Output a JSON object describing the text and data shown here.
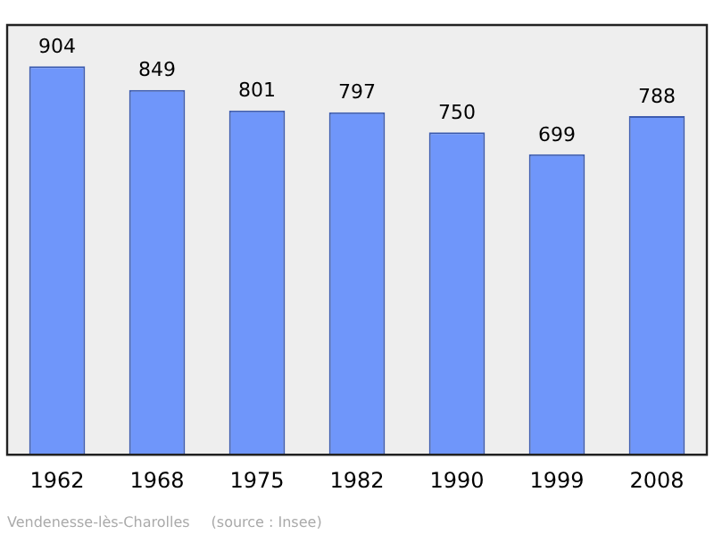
{
  "chart_data": {
    "type": "bar",
    "categories": [
      "1962",
      "1968",
      "1975",
      "1982",
      "1990",
      "1999",
      "2008"
    ],
    "values": [
      904,
      849,
      801,
      797,
      750,
      699,
      788
    ],
    "color": "#6f96fa",
    "ylim": [
      0,
      1000
    ],
    "data_labels": true,
    "legend": false,
    "tick_labels": "x",
    "annotations": [
      "Vendenesse-lès-Charolles",
      "(source : Insee)"
    ]
  }
}
